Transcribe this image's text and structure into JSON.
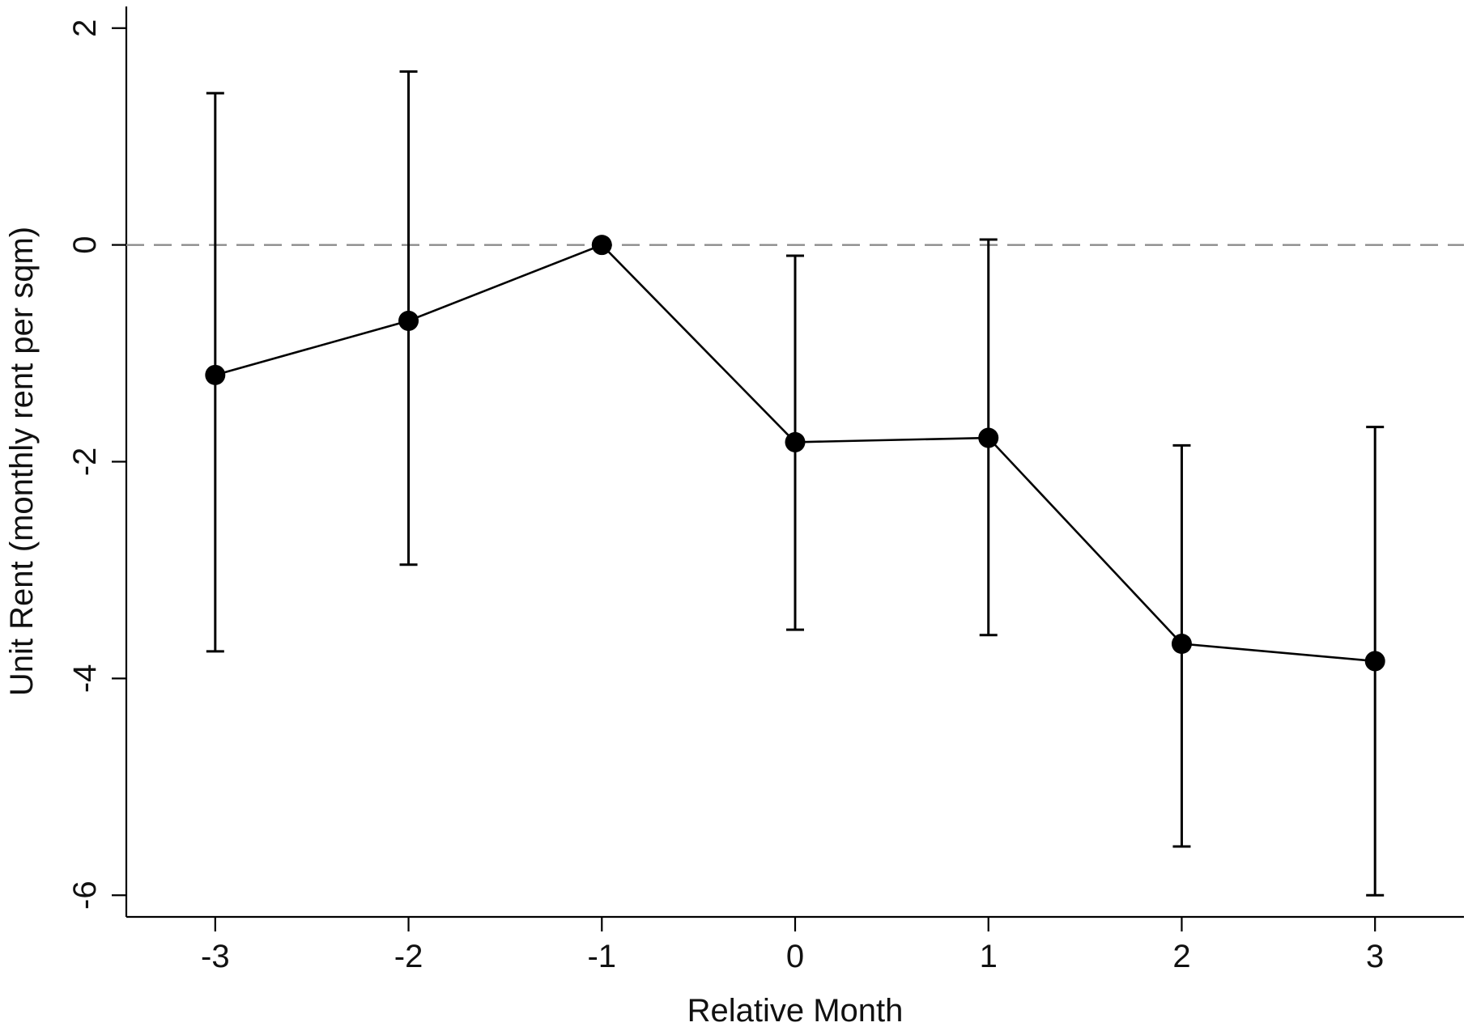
{
  "chart_data": {
    "type": "scatter",
    "title": "",
    "xlabel": "Relative Month",
    "ylabel": "Unit Rent (monthly rent per sqm)",
    "x": [
      -3,
      -2,
      -1,
      0,
      1,
      2,
      3
    ],
    "xticks": [
      "-3",
      "-2",
      "-1",
      "0",
      "1",
      "2",
      "3"
    ],
    "yticks": [
      "2",
      "0",
      "-2",
      "-4",
      "-6"
    ],
    "xlim": [
      -3.46,
      3.46
    ],
    "ylim": [
      -6.2,
      2.2
    ],
    "series": [
      {
        "values": [
          -1.2,
          -0.7,
          0.0,
          -1.82,
          -1.78,
          -3.68,
          -3.84
        ],
        "ci_lower": [
          -3.75,
          -2.95,
          0.0,
          -3.55,
          -3.6,
          -5.55,
          -6.0
        ],
        "ci_upper": [
          1.4,
          1.6,
          0.0,
          -0.1,
          0.05,
          -1.85,
          -1.68
        ]
      }
    ],
    "reference_line": {
      "y": 0,
      "style": "dashed",
      "color": "#8c8c8c"
    },
    "grid": false,
    "legend": "none"
  }
}
